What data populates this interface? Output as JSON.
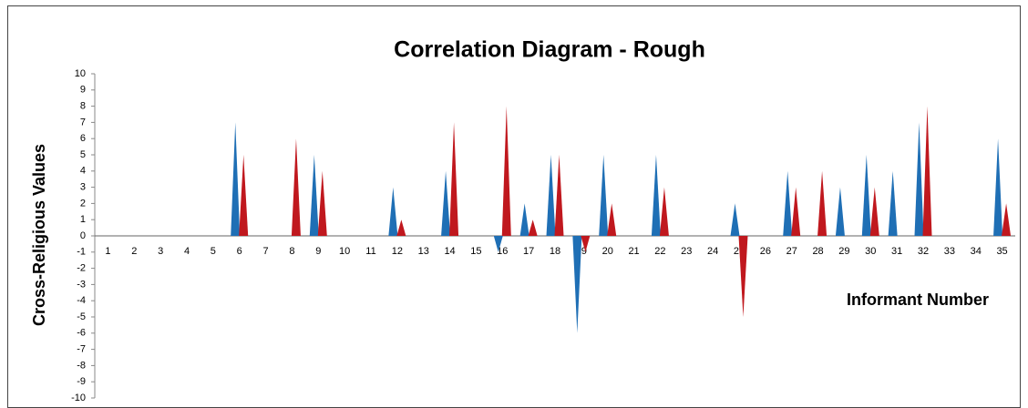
{
  "chart_data": {
    "type": "spike",
    "title": "Correlation Diagram - Rough",
    "xlabel": "Informant Number",
    "ylabel": "Cross-Religious Values",
    "categories": [
      "1",
      "2",
      "3",
      "4",
      "5",
      "6",
      "7",
      "8",
      "9",
      "10",
      "11",
      "12",
      "13",
      "14",
      "15",
      "16",
      "17",
      "18",
      "19",
      "20",
      "21",
      "22",
      "23",
      "24",
      "25",
      "26",
      "27",
      "28",
      "29",
      "30",
      "31",
      "32",
      "33",
      "34",
      "35"
    ],
    "series": [
      {
        "color": "#1f6fb5",
        "values": [
          0,
          0,
          0,
          0,
          0,
          7,
          0,
          0,
          5,
          0,
          0,
          3,
          0,
          4,
          0,
          -1,
          2,
          5,
          -6,
          5,
          0,
          5,
          0,
          0,
          2,
          0,
          4,
          0,
          3,
          5,
          4,
          7,
          0,
          0,
          6
        ]
      },
      {
        "color": "#c0181e",
        "values": [
          0,
          0,
          0,
          0,
          0,
          5,
          0,
          6,
          4,
          0,
          0,
          1,
          0,
          7,
          0,
          8,
          1,
          5,
          -1,
          2,
          0,
          3,
          0,
          0,
          -5,
          0,
          3,
          4,
          0,
          3,
          0,
          8,
          0,
          0,
          2
        ]
      }
    ],
    "ylim": [
      -10,
      10
    ],
    "yticks": [
      -10,
      -9,
      -8,
      -7,
      -6,
      -5,
      -4,
      -3,
      -2,
      -1,
      0,
      1,
      2,
      3,
      4,
      5,
      6,
      7,
      8,
      9,
      10
    ]
  }
}
